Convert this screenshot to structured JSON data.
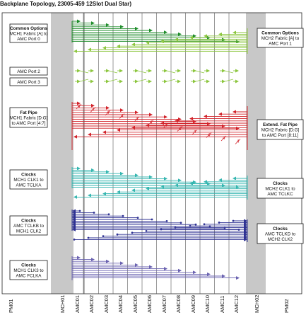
{
  "title": "Backplane Topology, 23005-459 12Slot Dual Star)",
  "slots": [
    "PM01",
    "MCH01",
    "AMC01",
    "AMC02",
    "AMC03",
    "AMC04",
    "AMC05",
    "AMC06",
    "AMC07",
    "AMC08",
    "AMC09",
    "AMC10",
    "AMC11",
    "AMC12",
    "MCH02",
    "PM02"
  ],
  "left_boxes": [
    {
      "title": "Common Options",
      "lines": [
        "MCH1 Fabric [A] to",
        "AMC Port 0"
      ]
    },
    {
      "title": "",
      "lines": [
        "AMC Port 2"
      ]
    },
    {
      "title": "",
      "lines": [
        "AMC Port 3"
      ]
    },
    {
      "title": "Fat Pipe",
      "lines": [
        "MCH1 Fabric [D:G]",
        "to AMC Port [4:7]"
      ]
    },
    {
      "title": "Clocks",
      "lines": [
        "MCH1 CLK1 to",
        "AMC TCLKA"
      ]
    },
    {
      "title": "Clocks",
      "lines": [
        "AMC TCLKB to",
        "MCH1 CLK2"
      ]
    },
    {
      "title": "Clocks",
      "lines": [
        "MCH1 CLK3 to",
        "AMC FCLKA"
      ]
    }
  ],
  "right_boxes": [
    {
      "title": "Common Options",
      "lines": [
        "MCH2 Fabric [A] to",
        "AMC Port 1"
      ]
    },
    {
      "title": "Extend. Fat Pipe",
      "lines": [
        "MCH2 Fabric [D:G]",
        "to AMC Port [8:11]"
      ]
    },
    {
      "title": "Clocks",
      "lines": [
        "MCH2 CLK1 to",
        "AMC TCLKC"
      ]
    },
    {
      "title": "Clocks",
      "lines": [
        "AMC TCLKD to",
        "MCH2 CLK2"
      ]
    }
  ],
  "fat_pipe_marker": "4",
  "colors": {
    "mch_column": "#c8c8c8",
    "dark_green": "#1e8c2a",
    "light_green": "#8cc63e",
    "red": "#d2232a",
    "teal": "#35b6b0",
    "navy": "#2e3192",
    "purple": "#6a62b0"
  }
}
